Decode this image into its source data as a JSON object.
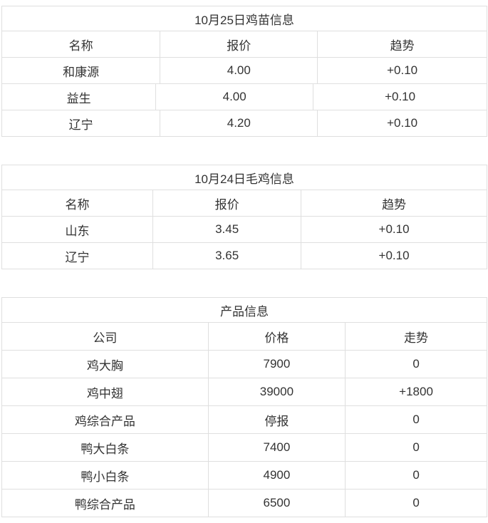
{
  "page": {
    "background": "#ffffff",
    "border_color": "#dfdfdf",
    "text_color": "#333333"
  },
  "tables": [
    {
      "title": "10月25日鸡苗信息",
      "headers": [
        "名称",
        "报价",
        "趋势"
      ],
      "rows": [
        [
          "和康源",
          "4.00",
          "+0.10"
        ],
        [
          "益生",
          "4.00",
          "+0.10"
        ],
        [
          "辽宁",
          "4.20",
          "+0.10"
        ]
      ]
    },
    {
      "title": "10月24日毛鸡信息",
      "headers": [
        "名称",
        "报价",
        "趋势"
      ],
      "rows": [
        [
          "山东",
          "3.45",
          "+0.10"
        ],
        [
          "辽宁",
          "3.65",
          "+0.10"
        ]
      ]
    },
    {
      "title": "产品信息",
      "headers": [
        "公司",
        "价格",
        "走势"
      ],
      "rows": [
        [
          "鸡大胸",
          "7900",
          "0"
        ],
        [
          "鸡中翅",
          "39000",
          "+1800"
        ],
        [
          "鸡综合产品",
          "停报",
          "0"
        ],
        [
          "鸭大白条",
          "7400",
          "0"
        ],
        [
          "鸭小白条",
          "4900",
          "0"
        ],
        [
          "鸭综合产品",
          "6500",
          "0"
        ]
      ]
    }
  ]
}
